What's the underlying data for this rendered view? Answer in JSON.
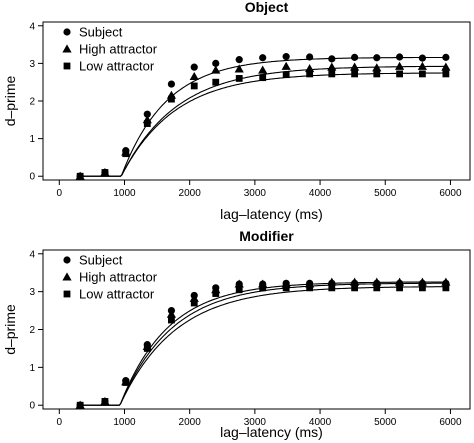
{
  "chart_data": [
    {
      "type": "scatter",
      "title": "Object",
      "xlabel": "lag–latency (ms)",
      "ylabel": "d–prime",
      "xlim": [
        -250,
        6300
      ],
      "ylim": [
        -0.1,
        4.1
      ],
      "xticks": [
        0,
        1000,
        2000,
        3000,
        4000,
        5000,
        6000
      ],
      "yticks": [
        0,
        1,
        2,
        3,
        4
      ],
      "grid": false,
      "legend_position": "top-left",
      "series": [
        {
          "name": "Subject",
          "marker": "circle",
          "x": [
            320,
            700,
            1020,
            1350,
            1720,
            2070,
            2400,
            2760,
            3120,
            3480,
            3840,
            4180,
            4530,
            4870,
            5220,
            5570,
            5930
          ],
          "y": [
            0.0,
            0.1,
            0.68,
            1.65,
            2.45,
            2.9,
            3.0,
            3.1,
            3.15,
            3.18,
            3.17,
            3.12,
            3.16,
            3.15,
            3.17,
            3.14,
            3.16
          ],
          "fit": {
            "intercept": 950,
            "rate": 0.00144,
            "asymptote": 3.16
          }
        },
        {
          "name": "High attractor",
          "marker": "triangle",
          "x": [
            320,
            700,
            1020,
            1350,
            1720,
            2070,
            2400,
            2760,
            3120,
            3480,
            3840,
            4180,
            4530,
            4870,
            5220,
            5570,
            5930
          ],
          "y": [
            0.0,
            0.1,
            0.64,
            1.5,
            2.15,
            2.65,
            2.82,
            2.85,
            2.82,
            2.92,
            2.86,
            2.9,
            2.9,
            2.88,
            2.92,
            2.92,
            2.9
          ],
          "fit": {
            "intercept": 950,
            "rate": 0.00118,
            "asymptote": 2.93
          }
        },
        {
          "name": "Low attractor",
          "marker": "square",
          "x": [
            320,
            700,
            1020,
            1350,
            1720,
            2070,
            2400,
            2760,
            3120,
            3480,
            3840,
            4180,
            4530,
            4870,
            5220,
            5570,
            5930
          ],
          "y": [
            0.0,
            0.1,
            0.6,
            1.4,
            2.05,
            2.4,
            2.5,
            2.6,
            2.62,
            2.7,
            2.72,
            2.72,
            2.72,
            2.72,
            2.72,
            2.72,
            2.72
          ],
          "fit": {
            "intercept": 950,
            "rate": 0.00122,
            "asymptote": 2.75
          }
        }
      ]
    },
    {
      "type": "scatter",
      "title": "Modifier",
      "xlabel": "lag–latency (ms)",
      "ylabel": "d–prime",
      "xlim": [
        -250,
        6300
      ],
      "ylim": [
        -0.1,
        4.1
      ],
      "xticks": [
        0,
        1000,
        2000,
        3000,
        4000,
        5000,
        6000
      ],
      "yticks": [
        0,
        1,
        2,
        3,
        4
      ],
      "grid": false,
      "legend_position": "top-left",
      "series": [
        {
          "name": "Subject",
          "marker": "circle",
          "x": [
            320,
            700,
            1020,
            1350,
            1720,
            2070,
            2400,
            2760,
            3120,
            3480,
            3840,
            4180,
            4530,
            4870,
            5220,
            5570,
            5930
          ],
          "y": [
            0.0,
            0.1,
            0.65,
            1.6,
            2.5,
            2.9,
            3.1,
            3.2,
            3.2,
            3.22,
            3.22,
            3.22,
            3.22,
            3.22,
            3.22,
            3.22,
            3.22
          ],
          "fit": {
            "intercept": 930,
            "rate": 0.00135,
            "asymptote": 3.26
          }
        },
        {
          "name": "High attractor",
          "marker": "triangle",
          "x": [
            320,
            700,
            1020,
            1350,
            1720,
            2070,
            2400,
            2760,
            3120,
            3480,
            3840,
            4180,
            4530,
            4870,
            5220,
            5570,
            5930
          ],
          "y": [
            0.0,
            0.1,
            0.62,
            1.55,
            2.4,
            2.82,
            3.05,
            3.2,
            3.2,
            3.2,
            3.2,
            3.25,
            3.25,
            3.25,
            3.25,
            3.25,
            3.25
          ],
          "fit": {
            "intercept": 930,
            "rate": 0.00125,
            "asymptote": 3.23
          }
        },
        {
          "name": "Low attractor",
          "marker": "square",
          "x": [
            320,
            700,
            1020,
            1350,
            1720,
            2070,
            2400,
            2760,
            3120,
            3480,
            3840,
            4180,
            4530,
            4870,
            5220,
            5570,
            5930
          ],
          "y": [
            0.0,
            0.1,
            0.6,
            1.5,
            2.25,
            2.7,
            2.95,
            3.05,
            3.1,
            3.1,
            3.1,
            3.1,
            3.1,
            3.1,
            3.1,
            3.1,
            3.1
          ],
          "fit": {
            "intercept": 930,
            "rate": 0.00118,
            "asymptote": 3.14
          }
        }
      ]
    }
  ]
}
